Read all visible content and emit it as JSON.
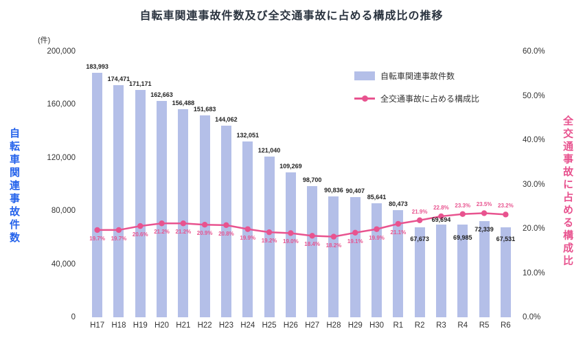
{
  "title": "自転車関連事故件数及び全交通事故に占める構成比の推移",
  "left_axis": {
    "unit": "(件)",
    "title": "自転車関連事故件数",
    "ticks": [
      "200,000",
      "160,000",
      "120,000",
      "80,000",
      "40,000",
      "0"
    ]
  },
  "right_axis": {
    "title": "全交通事故に占める構成比",
    "ticks": [
      "60.0%",
      "50.0%",
      "40.0%",
      "30.0%",
      "20.0%",
      "10.0%",
      "0.0%"
    ]
  },
  "legend": {
    "bar_label": "自転車関連事故件数",
    "line_label": "全交通事故に占める構成比"
  },
  "colors": {
    "bar": "#b4bfe8",
    "line": "#e8538f",
    "left_axis_title": "#2563eb",
    "right_axis_title": "#e8538f",
    "title": "#2b3440",
    "tick_text": "#333333",
    "bar_value_text": "#222222"
  },
  "chart_data": {
    "type": "bar+line",
    "categories": [
      "H17",
      "H18",
      "H19",
      "H20",
      "H21",
      "H22",
      "H23",
      "H24",
      "H25",
      "H26",
      "H27",
      "H28",
      "H29",
      "H30",
      "R1",
      "R2",
      "R3",
      "R4",
      "R5",
      "R6"
    ],
    "series": [
      {
        "name": "自転車関連事故件数",
        "type": "bar",
        "axis": "left",
        "values": [
          183993,
          174471,
          171171,
          162663,
          156488,
          151683,
          144062,
          132051,
          121040,
          109269,
          98700,
          90836,
          90407,
          85641,
          80473,
          67673,
          69694,
          69985,
          72339,
          67531
        ],
        "labels": [
          "183,993",
          "174,471",
          "171,171",
          "162,663",
          "156,488",
          "151,683",
          "144,062",
          "132,051",
          "121,040",
          "109,269",
          "98,700",
          "90,836",
          "90,407",
          "85,641",
          "80,473",
          "67,673",
          "69,694",
          "69,985",
          "72,339",
          "67,531"
        ]
      },
      {
        "name": "全交通事故に占める構成比",
        "type": "line",
        "axis": "right",
        "values": [
          19.7,
          19.7,
          20.6,
          21.2,
          21.2,
          20.9,
          20.8,
          19.9,
          19.2,
          19.0,
          18.4,
          18.2,
          19.1,
          19.9,
          21.1,
          21.9,
          22.8,
          23.3,
          23.5,
          23.2
        ],
        "labels": [
          "19.7%",
          "19.7%",
          "20.6%",
          "21.2%",
          "21.2%",
          "20.9%",
          "20.8%",
          "19.9%",
          "19.2%",
          "19.0%",
          "18.4%",
          "18.2%",
          "19.1%",
          "19.9%",
          "21.1%",
          "21.9%",
          "22.8%",
          "23.3%",
          "23.5%",
          "23.2%"
        ]
      }
    ],
    "left_ylim": [
      0,
      200000
    ],
    "right_ylim": [
      0,
      60
    ],
    "grid": false,
    "legend_position": "top-right"
  }
}
